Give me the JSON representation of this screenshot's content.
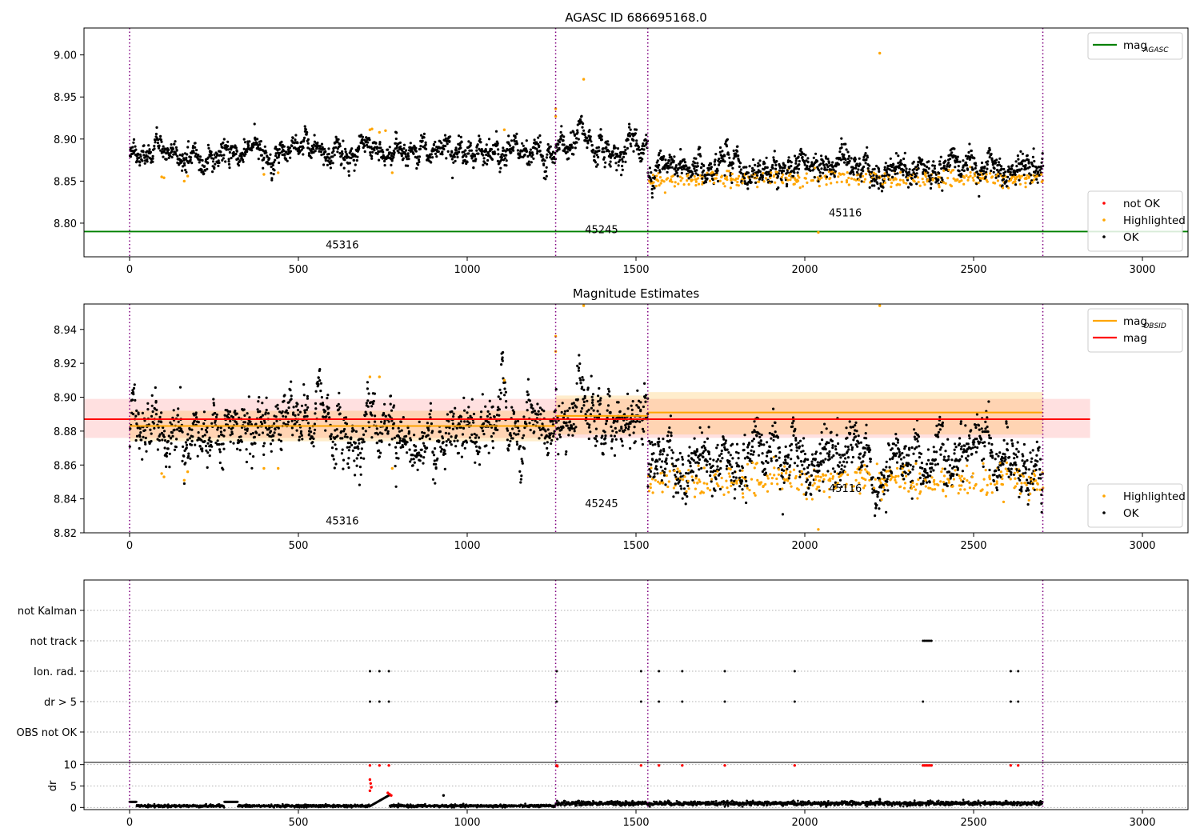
{
  "figure_title": "AGASC ID 686695168.0",
  "chart_data": [
    {
      "type": "scatter",
      "title": "",
      "xlim": [
        -135,
        3135
      ],
      "ylim": [
        8.76,
        9.032
      ],
      "x_ticks": [
        0,
        500,
        1000,
        1500,
        2000,
        2500,
        3000
      ],
      "y_ticks": [
        8.8,
        8.85,
        8.9,
        8.95,
        9.0
      ],
      "y_tick_labels": [
        "8.80",
        "8.85",
        "8.90",
        "8.95",
        "9.00"
      ],
      "obs_boundaries": [
        0,
        1262,
        1535,
        2705
      ],
      "obs_labels": [
        {
          "text": "45316",
          "x": 630,
          "y": 8.77
        },
        {
          "text": "45245",
          "x": 1398,
          "y": 8.788
        },
        {
          "text": "45116",
          "x": 2120,
          "y": 8.808
        }
      ],
      "lines": [
        {
          "name": "mag_AGASC",
          "y": 8.79,
          "x": [
            -135,
            3135
          ],
          "color": "#008000"
        }
      ],
      "series": [
        {
          "name": "not OK",
          "color": "#ff0000",
          "points": []
        },
        {
          "name": "Highlighted",
          "color": "#ffa500",
          "points": [
            [
              712,
              8.911
            ],
            [
              718,
              8.912
            ],
            [
              740,
              8.908
            ],
            [
              758,
              8.91
            ],
            [
              778,
              8.86
            ],
            [
              95,
              8.855
            ],
            [
              102,
              8.854
            ],
            [
              162,
              8.85
            ],
            [
              172,
              8.856
            ],
            [
              398,
              8.858
            ],
            [
              440,
              8.86
            ],
            [
              1110,
              8.911
            ],
            [
              1262,
              8.936
            ],
            [
              1262,
              8.927
            ],
            [
              1345,
              8.971
            ],
            [
              2222,
              9.002
            ],
            [
              2040,
              8.789
            ],
            [
              2623,
              8.852
            ]
          ]
        },
        {
          "name": "OK",
          "color": "#000000",
          "points": []
        }
      ],
      "segments": [
        {
          "x0": 0,
          "x1": 1262,
          "mean": 8.884,
          "sd": 0.008,
          "hl_frac": 0.0
        },
        {
          "x0": 1262,
          "x1": 1535,
          "mean": 8.89,
          "sd": 0.009,
          "hl_frac": 0.0
        },
        {
          "x0": 1535,
          "x1": 2705,
          "mean": 8.865,
          "sd": 0.009,
          "hl_frac": 0.35,
          "hl_offset": -0.012
        }
      ],
      "legends": [
        {
          "pos": "top-right",
          "entries": [
            {
              "label": "mag",
              "sub": "AGASC",
              "kind": "line",
              "color": "#008000"
            }
          ]
        },
        {
          "pos": "bottom-right",
          "entries": [
            {
              "label": "not OK",
              "kind": "dot",
              "color": "#ff0000"
            },
            {
              "label": "Highlighted",
              "kind": "dot",
              "color": "#ffa500"
            },
            {
              "label": "OK",
              "kind": "dot",
              "color": "#000000"
            }
          ]
        }
      ]
    },
    {
      "type": "scatter",
      "title": "Magnitude Estimates",
      "xlim": [
        -135,
        3135
      ],
      "ylim": [
        8.82,
        8.955
      ],
      "x_ticks": [
        0,
        500,
        1000,
        1500,
        2000,
        2500,
        3000
      ],
      "y_ticks": [
        8.82,
        8.84,
        8.86,
        8.88,
        8.9,
        8.92,
        8.94
      ],
      "y_tick_labels": [
        "8.82",
        "8.84",
        "8.86",
        "8.88",
        "8.90",
        "8.92",
        "8.94"
      ],
      "obs_boundaries": [
        0,
        1262,
        1535,
        2705
      ],
      "obs_labels": [
        {
          "text": "45316",
          "x": 630,
          "y": 8.825
        },
        {
          "text": "45245",
          "x": 1398,
          "y": 8.835
        },
        {
          "text": "45116",
          "x": 2120,
          "y": 8.844
        }
      ],
      "bands": [
        {
          "x0": -135,
          "x1": 2845,
          "y0": 8.876,
          "y1": 8.899,
          "color": "#ff0000",
          "opacity": 0.12
        },
        {
          "x0": 0,
          "x1": 1262,
          "y0": 8.874,
          "y1": 8.892,
          "color": "#ffa500",
          "opacity": 0.2
        },
        {
          "x0": 1262,
          "x1": 1535,
          "y0": 8.878,
          "y1": 8.901,
          "color": "#ffa500",
          "opacity": 0.2
        },
        {
          "x0": 1535,
          "x1": 2705,
          "y0": 8.878,
          "y1": 8.903,
          "color": "#ffa500",
          "opacity": 0.2
        }
      ],
      "lines": [
        {
          "name": "mag_OBSID",
          "color": "#ffa500",
          "segments": [
            [
              0,
              1262,
              8.883
            ],
            [
              1262,
              1535,
              8.889
            ],
            [
              1535,
              2705,
              8.891
            ]
          ]
        },
        {
          "name": "mag",
          "color": "#ff0000",
          "segments": [
            [
              -135,
              2845,
              8.887
            ]
          ]
        }
      ],
      "series": [
        {
          "name": "Highlighted",
          "color": "#ffa500",
          "points": [
            [
              712,
              8.912
            ],
            [
              740,
              8.912
            ],
            [
              778,
              8.858
            ],
            [
              95,
              8.855
            ],
            [
              102,
              8.853
            ],
            [
              162,
              8.851
            ],
            [
              172,
              8.856
            ],
            [
              398,
              8.858
            ],
            [
              440,
              8.858
            ],
            [
              1110,
              8.91
            ],
            [
              1262,
              8.936
            ],
            [
              1262,
              8.927
            ],
            [
              1345,
              8.954
            ],
            [
              2222,
              8.954
            ],
            [
              2040,
              8.822
            ],
            [
              2623,
              8.852
            ]
          ]
        },
        {
          "name": "OK",
          "color": "#000000",
          "points": []
        }
      ],
      "segments": [
        {
          "x0": 0,
          "x1": 1262,
          "mean": 8.881,
          "sd": 0.009,
          "hl_frac": 0.0
        },
        {
          "x0": 1262,
          "x1": 1535,
          "mean": 8.888,
          "sd": 0.01,
          "hl_frac": 0.0
        },
        {
          "x0": 1535,
          "x1": 2705,
          "mean": 8.864,
          "sd": 0.009,
          "hl_frac": 0.35,
          "hl_offset": -0.013
        }
      ],
      "legends": [
        {
          "pos": "top-right",
          "entries": [
            {
              "label": "mag",
              "sub": "OBSID",
              "kind": "line",
              "color": "#ffa500"
            },
            {
              "label": "mag",
              "kind": "line",
              "color": "#ff0000"
            }
          ]
        },
        {
          "pos": "bottom-right",
          "entries": [
            {
              "label": "Highlighted",
              "kind": "dot",
              "color": "#ffa500"
            },
            {
              "label": "OK",
              "kind": "dot",
              "color": "#000000"
            }
          ]
        }
      ]
    },
    {
      "type": "scatter",
      "title": "",
      "xlim": [
        -135,
        3135
      ],
      "categories": [
        "not Kalman",
        "not track",
        "Ion. rad.",
        "dr > 5",
        "OBS not OK"
      ],
      "obs_boundaries": [
        0,
        1262,
        1535,
        2705
      ],
      "flag_points": [
        {
          "category": "not track",
          "x": [
            2350,
            2355,
            2360,
            2365,
            2370,
            2375
          ]
        },
        {
          "category": "Ion. rad.",
          "x": [
            712,
            740,
            768,
            1265,
            1515,
            1568,
            1637,
            1763,
            1970,
            2610,
            2632
          ]
        },
        {
          "category": "dr > 5",
          "x": [
            712,
            740,
            768,
            1265,
            1515,
            1568,
            1637,
            1763,
            1970,
            2350,
            2610,
            2632
          ]
        }
      ]
    },
    {
      "type": "scatter",
      "title": "",
      "xlim": [
        -135,
        3135
      ],
      "ylim": [
        -0.5,
        10.5
      ],
      "ylabel": "dr",
      "x_ticks": [
        0,
        500,
        1000,
        1500,
        2000,
        2500,
        3000
      ],
      "y_ticks": [
        0,
        5,
        10
      ],
      "y_tick_labels": [
        "0",
        "5",
        "10"
      ],
      "obs_boundaries": [
        0,
        1262,
        1535,
        2705
      ],
      "series": [
        {
          "name": "dr",
          "color": "#000000",
          "points": [
            [
              930,
              2.8
            ],
            [
              2222,
              1.9
            ],
            [
              1375,
              1.2
            ],
            [
              1470,
              1.4
            ]
          ]
        },
        {
          "name": "dr clipped",
          "color": "#ff0000",
          "points": [
            [
              712,
              9.8
            ],
            [
              740,
              9.8
            ],
            [
              768,
              9.8
            ],
            [
              1265,
              9.8
            ],
            [
              1267,
              9.6
            ],
            [
              1515,
              9.8
            ],
            [
              1568,
              9.8
            ],
            [
              1637,
              9.8
            ],
            [
              1763,
              9.8
            ],
            [
              1970,
              9.8
            ],
            [
              2350,
              9.8
            ],
            [
              2355,
              9.8
            ],
            [
              2360,
              9.8
            ],
            [
              2365,
              9.8
            ],
            [
              2370,
              9.8
            ],
            [
              2375,
              9.8
            ],
            [
              2610,
              9.8
            ],
            [
              2632,
              9.8
            ],
            [
              712,
              6.5
            ],
            [
              714,
              5.6
            ],
            [
              716,
              4.7
            ],
            [
              712,
              3.9
            ],
            [
              765,
              3.4
            ],
            [
              770,
              3.1
            ],
            [
              775,
              2.8
            ]
          ]
        }
      ],
      "segments": [
        {
          "x0": 0,
          "x1": 1262,
          "mean": 0.35,
          "sd": 0.15
        },
        {
          "x0": 1262,
          "x1": 2705,
          "mean": 0.95,
          "sd": 0.25
        }
      ]
    }
  ]
}
